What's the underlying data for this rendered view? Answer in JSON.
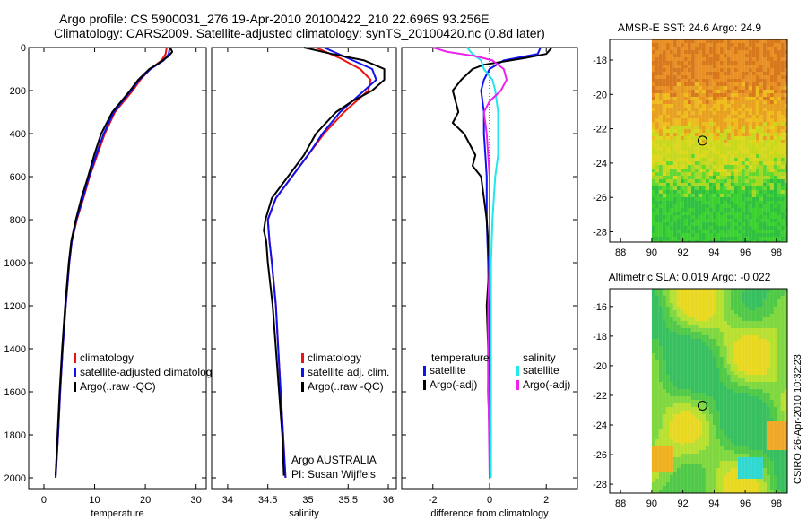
{
  "header": {
    "line1": "Argo profile: CS 5900031_276 19-Apr-2010 20100422_210 22.696S 93.256E",
    "line2": "Climatology: CARS2009. Satellite-adjusted climatology: synTS_20100420.nc (0.8d later)"
  },
  "side_label": "CSIRO 26-Apr-2010 10:32:23",
  "colors": {
    "climatology": "#ee1111",
    "satellite": "#1111ee",
    "argo": "#000000",
    "sat_sal": "#22e8ee",
    "argo_sal": "#ee22ee"
  },
  "chart_data": [
    {
      "type": "line",
      "id": "temperature",
      "xlabel": "temperature",
      "ylabel": "",
      "xlim": [
        -3,
        32
      ],
      "ylim": [
        2050,
        0
      ],
      "xticks": [
        0,
        10,
        20,
        30
      ],
      "yticks": [
        0,
        200,
        400,
        600,
        800,
        1000,
        1200,
        1400,
        1600,
        1800,
        2000
      ],
      "legend": [
        "climatology",
        "satellite-adjusted climatolog",
        "Argo(..raw -QC)"
      ],
      "series": [
        {
          "name": "climatology",
          "color": "#ee1111",
          "depth": [
            0,
            30,
            60,
            100,
            150,
            200,
            300,
            400,
            500,
            600,
            700,
            800,
            900,
            1000,
            1200,
            1400,
            1600,
            1800,
            2000
          ],
          "values": [
            24.2,
            24.0,
            23.2,
            21.0,
            19.0,
            17.5,
            14.0,
            12.0,
            10.5,
            9.0,
            7.8,
            6.5,
            5.5,
            5.0,
            4.3,
            3.7,
            3.2,
            2.8,
            2.3
          ]
        },
        {
          "name": "satellite-adjusted climatolog",
          "color": "#1111ee",
          "depth": [
            0,
            30,
            60,
            100,
            150,
            200,
            300,
            400,
            500,
            600,
            700,
            800,
            900,
            1000,
            1200,
            1400,
            1600,
            1800,
            2000
          ],
          "values": [
            24.8,
            24.6,
            23.6,
            21.0,
            18.8,
            17.2,
            13.8,
            11.8,
            10.3,
            8.9,
            7.7,
            6.4,
            5.5,
            5.0,
            4.3,
            3.7,
            3.2,
            2.8,
            2.3
          ]
        },
        {
          "name": "Argo(..raw -QC)",
          "color": "#000000",
          "depth": [
            0,
            20,
            40,
            70,
            100,
            150,
            200,
            300,
            400,
            500,
            600,
            700,
            800,
            900,
            1000,
            1200,
            1400,
            1600,
            1800,
            1990
          ],
          "values": [
            24.9,
            25.3,
            24.6,
            22.8,
            20.8,
            18.6,
            17.0,
            13.5,
            11.3,
            9.9,
            8.7,
            7.4,
            6.3,
            5.4,
            4.9,
            4.2,
            3.6,
            3.1,
            2.7,
            2.3
          ]
        }
      ]
    },
    {
      "type": "line",
      "id": "salinity",
      "xlabel": "salinity",
      "ylabel": "",
      "xlim": [
        33.8,
        36.1
      ],
      "ylim": [
        2050,
        0
      ],
      "xticks": [
        34,
        34.5,
        35,
        35.5,
        36
      ],
      "legend": [
        "climatology",
        "satellite adj. clim.",
        "Argo(..raw -QC)"
      ],
      "annotations": [
        "Argo AUSTRALIA",
        "PI: Susan Wijffels"
      ],
      "series": [
        {
          "name": "climatology",
          "color": "#ee1111",
          "depth": [
            0,
            50,
            100,
            150,
            200,
            250,
            300,
            400,
            500,
            600,
            700,
            800,
            900,
            1000,
            1200,
            1400,
            1600,
            1800,
            2000
          ],
          "values": [
            35.1,
            35.4,
            35.65,
            35.78,
            35.75,
            35.6,
            35.45,
            35.2,
            35.0,
            34.8,
            34.6,
            34.5,
            34.52,
            34.55,
            34.6,
            34.63,
            34.66,
            34.69,
            34.72
          ]
        },
        {
          "name": "satellite adj. clim.",
          "color": "#1111ee",
          "depth": [
            0,
            50,
            100,
            150,
            200,
            250,
            300,
            400,
            500,
            600,
            700,
            800,
            900,
            1000,
            1200,
            1400,
            1600,
            1800,
            2000
          ],
          "values": [
            35.2,
            35.5,
            35.8,
            35.85,
            35.7,
            35.55,
            35.4,
            35.18,
            35.0,
            34.8,
            34.6,
            34.5,
            34.52,
            34.55,
            34.6,
            34.63,
            34.66,
            34.69,
            34.72
          ]
        },
        {
          "name": "Argo(..raw -QC)",
          "color": "#000000",
          "depth": [
            0,
            30,
            60,
            100,
            150,
            200,
            250,
            300,
            400,
            500,
            600,
            700,
            800,
            850,
            900,
            1000,
            1200,
            1400,
            1600,
            1800,
            1990
          ],
          "values": [
            34.95,
            35.3,
            35.7,
            35.95,
            35.95,
            35.8,
            35.55,
            35.35,
            35.1,
            34.95,
            34.75,
            34.55,
            34.47,
            34.45,
            34.48,
            34.5,
            34.56,
            34.6,
            34.64,
            34.68,
            34.7
          ]
        }
      ]
    },
    {
      "type": "line",
      "id": "difference",
      "xlabel": "difference from climatology",
      "ylabel": "",
      "xlim": [
        -3.1,
        3.1
      ],
      "ylim": [
        2050,
        0
      ],
      "xticks": [
        -2,
        0,
        2
      ],
      "legend_titles": [
        "temperature",
        "salinity"
      ],
      "legend": [
        "satellite",
        "Argo(-adj)",
        "satellite",
        "Argo(-adj)"
      ],
      "series": [
        {
          "name": "temperature satellite",
          "color": "#1111ee",
          "depth": [
            0,
            30,
            60,
            100,
            150,
            200,
            300,
            400,
            500,
            600,
            800,
            1000,
            1500,
            2000
          ],
          "values": [
            1.8,
            1.7,
            0.5,
            0.0,
            -0.2,
            -0.3,
            -0.2,
            -0.2,
            -0.15,
            -0.1,
            -0.1,
            -0.05,
            0.0,
            0.0
          ]
        },
        {
          "name": "temperature Argo(-adj)",
          "color": "#000000",
          "depth": [
            0,
            30,
            50,
            80,
            100,
            150,
            200,
            250,
            300,
            350,
            400,
            450,
            500,
            550,
            600,
            700,
            800,
            900,
            1000,
            1200,
            1400,
            1600,
            1800,
            1990
          ],
          "values": [
            2.2,
            2.0,
            1.2,
            -0.2,
            -0.6,
            -1.0,
            -1.3,
            -1.2,
            -1.1,
            -1.3,
            -0.9,
            -0.7,
            -0.5,
            -0.6,
            -0.3,
            -0.2,
            -0.1,
            -0.05,
            0.0,
            -0.1,
            -0.05,
            -0.05,
            0.0,
            0.0
          ]
        },
        {
          "name": "salinity satellite",
          "color": "#22e8ee",
          "depth": [
            0,
            30,
            60,
            100,
            150,
            200,
            300,
            400,
            500,
            600,
            800,
            1000,
            1500,
            2000
          ],
          "values": [
            -0.8,
            -0.6,
            -0.3,
            -0.2,
            0.1,
            0.2,
            0.3,
            0.3,
            0.3,
            0.2,
            0.1,
            0.05,
            0.05,
            0.05
          ]
        },
        {
          "name": "salinity Argo(-adj)",
          "color": "#ee22ee",
          "depth": [
            0,
            20,
            40,
            60,
            100,
            150,
            200,
            250,
            300,
            400,
            500,
            600,
            800,
            1000,
            1200,
            1500,
            2000
          ],
          "values": [
            -2.0,
            -1.5,
            -0.5,
            0.1,
            0.5,
            0.6,
            0.4,
            0.0,
            -0.2,
            -0.1,
            -0.05,
            0.0,
            0.0,
            0.0,
            -0.05,
            -0.05,
            0.0
          ]
        }
      ]
    },
    {
      "type": "heatmap",
      "id": "sst-map",
      "title": "AMSR-E SST: 24.6 Argo: 24.9",
      "xlim": [
        87.3,
        98.7
      ],
      "ylim": [
        -28.6,
        -16.8
      ],
      "xticks": [
        88,
        90,
        92,
        94,
        96,
        98
      ],
      "yticks": [
        -18,
        -20,
        -22,
        -24,
        -26,
        -28
      ],
      "marker": [
        93.256,
        -22.696
      ]
    },
    {
      "type": "heatmap",
      "id": "sla-map",
      "title": "Altimetric SLA: 0.019 Argo: -0.022",
      "xlim": [
        87.3,
        98.7
      ],
      "ylim": [
        -28.6,
        -14.8
      ],
      "xticks": [
        88,
        90,
        92,
        94,
        96,
        98
      ],
      "yticks": [
        -16,
        -18,
        -20,
        -22,
        -24,
        -26,
        -28
      ],
      "marker": [
        93.256,
        -22.696
      ]
    }
  ]
}
